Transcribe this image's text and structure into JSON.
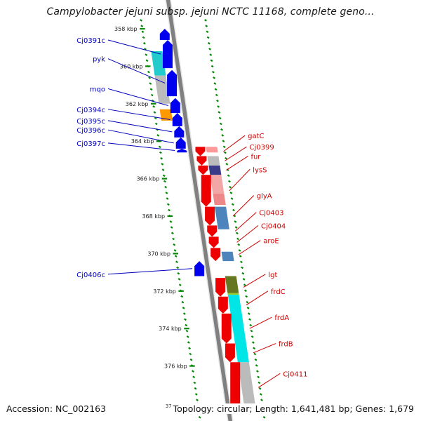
{
  "title": "Campylobacter jejuni subsp. jejuni NCTC 11168, complete geno...",
  "footer": {
    "accession": "Accession: NC_002163",
    "clipped_tick": "37",
    "summary": "Topology: circular; Length: 1,641,481 bp; Genes: 1,679"
  },
  "colors": {
    "forward_gene": "#0000ee",
    "reverse_gene": "#ee0000",
    "backbone": "#808080",
    "tick_marks": "#008800",
    "forward_label": "#0000bb",
    "reverse_label": "#cc0000"
  },
  "scale": {
    "unit": "kbp",
    "ticks": [
      {
        "kbp": 358,
        "label": "358 kbp"
      },
      {
        "kbp": 360,
        "label": "360 kbp"
      },
      {
        "kbp": 362,
        "label": "362 kbp"
      },
      {
        "kbp": 364,
        "label": "364 kbp"
      },
      {
        "kbp": 366,
        "label": "366 kbp"
      },
      {
        "kbp": 368,
        "label": "368 kbp"
      },
      {
        "kbp": 370,
        "label": "370 kbp"
      },
      {
        "kbp": 372,
        "label": "372 kbp"
      },
      {
        "kbp": 374,
        "label": "374 kbp"
      },
      {
        "kbp": 376,
        "label": "376 kbp"
      }
    ]
  },
  "forward_genes": [
    {
      "start": 358.0,
      "end": 358.6
    },
    {
      "start": 358.6,
      "end": 360.1,
      "label": "Cj0391c",
      "label_at": 358.6
    },
    {
      "start": 360.2,
      "end": 361.6,
      "label": "pyk",
      "label_at": 359.6
    },
    {
      "start": 361.7,
      "end": 362.5,
      "label": "mqo",
      "label_at": 361.2
    },
    {
      "start": 362.5,
      "end": 363.2,
      "label": "Cj0394c",
      "label_at": 362.3
    },
    {
      "start": 363.2,
      "end": 363.8,
      "label": "Cj0395c",
      "label_at": 362.9
    },
    {
      "start": 363.8,
      "end": 364.4,
      "label": "Cj0396c",
      "label_at": 363.4
    },
    {
      "start": 364.4,
      "end": 364.6,
      "label": "Cj0397c",
      "label_at": 364.1
    },
    {
      "start": 370.4,
      "end": 371.2,
      "label": "Cj0406c",
      "label_at": 371.1
    }
  ],
  "reverse_genes": [
    {
      "start": 364.3,
      "end": 364.8,
      "label": "gatC",
      "label_at": 363.7
    },
    {
      "start": 364.8,
      "end": 365.3,
      "label": "Cj0399",
      "label_at": 364.3
    },
    {
      "start": 365.3,
      "end": 365.8,
      "label": "fur",
      "label_at": 364.8
    },
    {
      "start": 365.8,
      "end": 367.5,
      "label": "lysS",
      "label_at": 365.5
    },
    {
      "start": 367.5,
      "end": 368.5,
      "label": "glyA",
      "label_at": 366.9
    },
    {
      "start": 368.5,
      "end": 369.1,
      "label": "Cj0403",
      "label_at": 367.8
    },
    {
      "start": 369.1,
      "end": 369.7,
      "label": "Cj0404",
      "label_at": 368.5
    },
    {
      "start": 369.7,
      "end": 370.4,
      "label": "aroE",
      "label_at": 369.3
    },
    {
      "start": 371.3,
      "end": 372.3,
      "label": "lgt",
      "label_at": 371.1
    },
    {
      "start": 372.3,
      "end": 373.2,
      "label": "frdC",
      "label_at": 372.0
    },
    {
      "start": 373.2,
      "end": 374.8,
      "label": "frdA",
      "label_at": 373.4
    },
    {
      "start": 374.8,
      "end": 375.8,
      "label": "frdB",
      "label_at": 374.8
    },
    {
      "start": 375.8,
      "end": 378.5,
      "label": "Cj0411",
      "label_at": 376.4
    }
  ],
  "cog_left": [
    {
      "start": 359.2,
      "end": 360.5,
      "color": "#22cccc"
    },
    {
      "start": 360.5,
      "end": 362.0,
      "color": "#bbbbbb"
    },
    {
      "start": 362.3,
      "end": 362.9,
      "color": "#ff9900"
    }
  ],
  "cog_right": [
    {
      "start": 364.3,
      "end": 364.6,
      "color": "#ff9999"
    },
    {
      "start": 364.8,
      "end": 365.3,
      "color": "#bbbbbb"
    },
    {
      "start": 365.3,
      "end": 365.8,
      "color": "#3a3a88"
    },
    {
      "start": 365.8,
      "end": 366.8,
      "color": "#f2a6a6"
    },
    {
      "start": 366.8,
      "end": 367.4,
      "color": "#ee8888"
    },
    {
      "start": 367.5,
      "end": 368.7,
      "color": "#4d84bb"
    },
    {
      "start": 369.9,
      "end": 370.4,
      "color": "#4d84bb"
    },
    {
      "start": 371.2,
      "end": 372.1,
      "color": "#667722"
    },
    {
      "start": 372.1,
      "end": 372.2,
      "color": "#99cc33"
    },
    {
      "start": 372.2,
      "end": 375.8,
      "color": "#00e5e5"
    },
    {
      "start": 375.8,
      "end": 378.5,
      "color": "#bbbbbb"
    }
  ]
}
